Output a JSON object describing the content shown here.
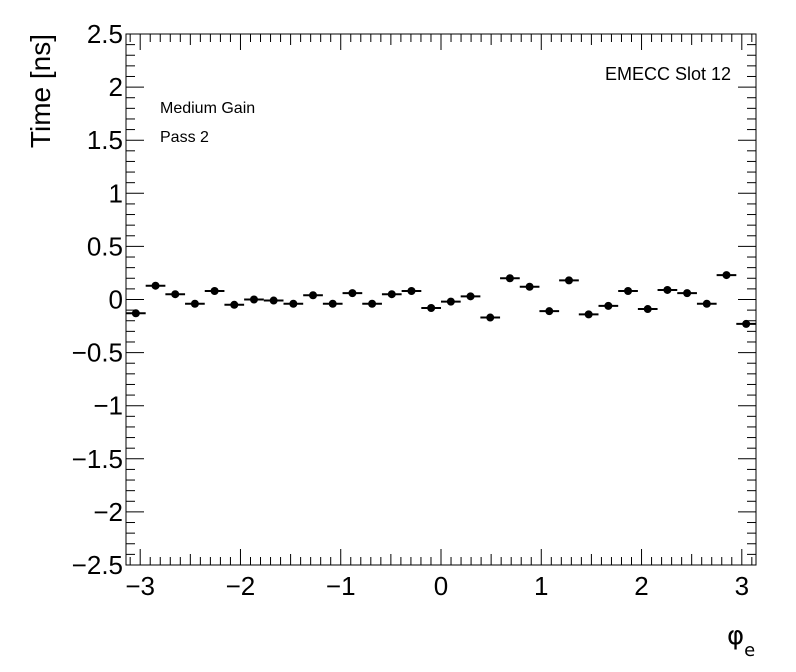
{
  "chart_data": {
    "type": "scatter",
    "title": "",
    "xlabel": "φ",
    "xlabel_subscript": "e",
    "ylabel": "Time [ns]",
    "xlim": [
      -3.1416,
      3.1416
    ],
    "ylim": [
      -2.5,
      2.5
    ],
    "x_ticks": [
      -3,
      -2,
      -1,
      0,
      1,
      2,
      3
    ],
    "x_tick_labels": [
      "−3",
      "−2",
      "−1",
      "0",
      "1",
      "2",
      "3"
    ],
    "y_ticks": [
      -2.5,
      -2,
      -1.5,
      -1,
      -0.5,
      0,
      0.5,
      1,
      1.5,
      2,
      2.5
    ],
    "y_tick_labels": [
      "−2.5",
      "−2",
      "−1.5",
      "−1",
      "−0.5",
      "0",
      "0.5",
      "1",
      "1.5",
      "2",
      "2.5"
    ],
    "grid": false,
    "annotations": [
      "Medium Gain",
      "Pass 2",
      "EMECC Slot 12"
    ],
    "series": [
      {
        "marker_color": "#000000",
        "x_bin_width": 0.19635,
        "x": [
          -3.0434,
          -2.8471,
          -2.6507,
          -2.4544,
          -2.258,
          -2.0617,
          -1.8653,
          -1.669,
          -1.4726,
          -1.2763,
          -1.0799,
          -0.8836,
          -0.6872,
          -0.4909,
          -0.2945,
          -0.0982,
          0.0982,
          0.2945,
          0.4909,
          0.6872,
          0.8836,
          1.0799,
          1.2763,
          1.4726,
          1.669,
          1.8653,
          2.0617,
          2.258,
          2.4544,
          2.6507,
          2.8471,
          3.0434
        ],
        "y": [
          -0.13,
          0.13,
          0.05,
          -0.04,
          0.08,
          -0.05,
          0.0,
          -0.01,
          -0.04,
          0.04,
          -0.04,
          0.06,
          -0.04,
          0.05,
          0.08,
          -0.08,
          -0.02,
          0.03,
          -0.17,
          0.2,
          0.12,
          -0.11,
          0.18,
          -0.14,
          -0.06,
          0.08,
          -0.09,
          0.09,
          0.06,
          -0.04,
          0.23,
          -0.23
        ]
      }
    ]
  }
}
